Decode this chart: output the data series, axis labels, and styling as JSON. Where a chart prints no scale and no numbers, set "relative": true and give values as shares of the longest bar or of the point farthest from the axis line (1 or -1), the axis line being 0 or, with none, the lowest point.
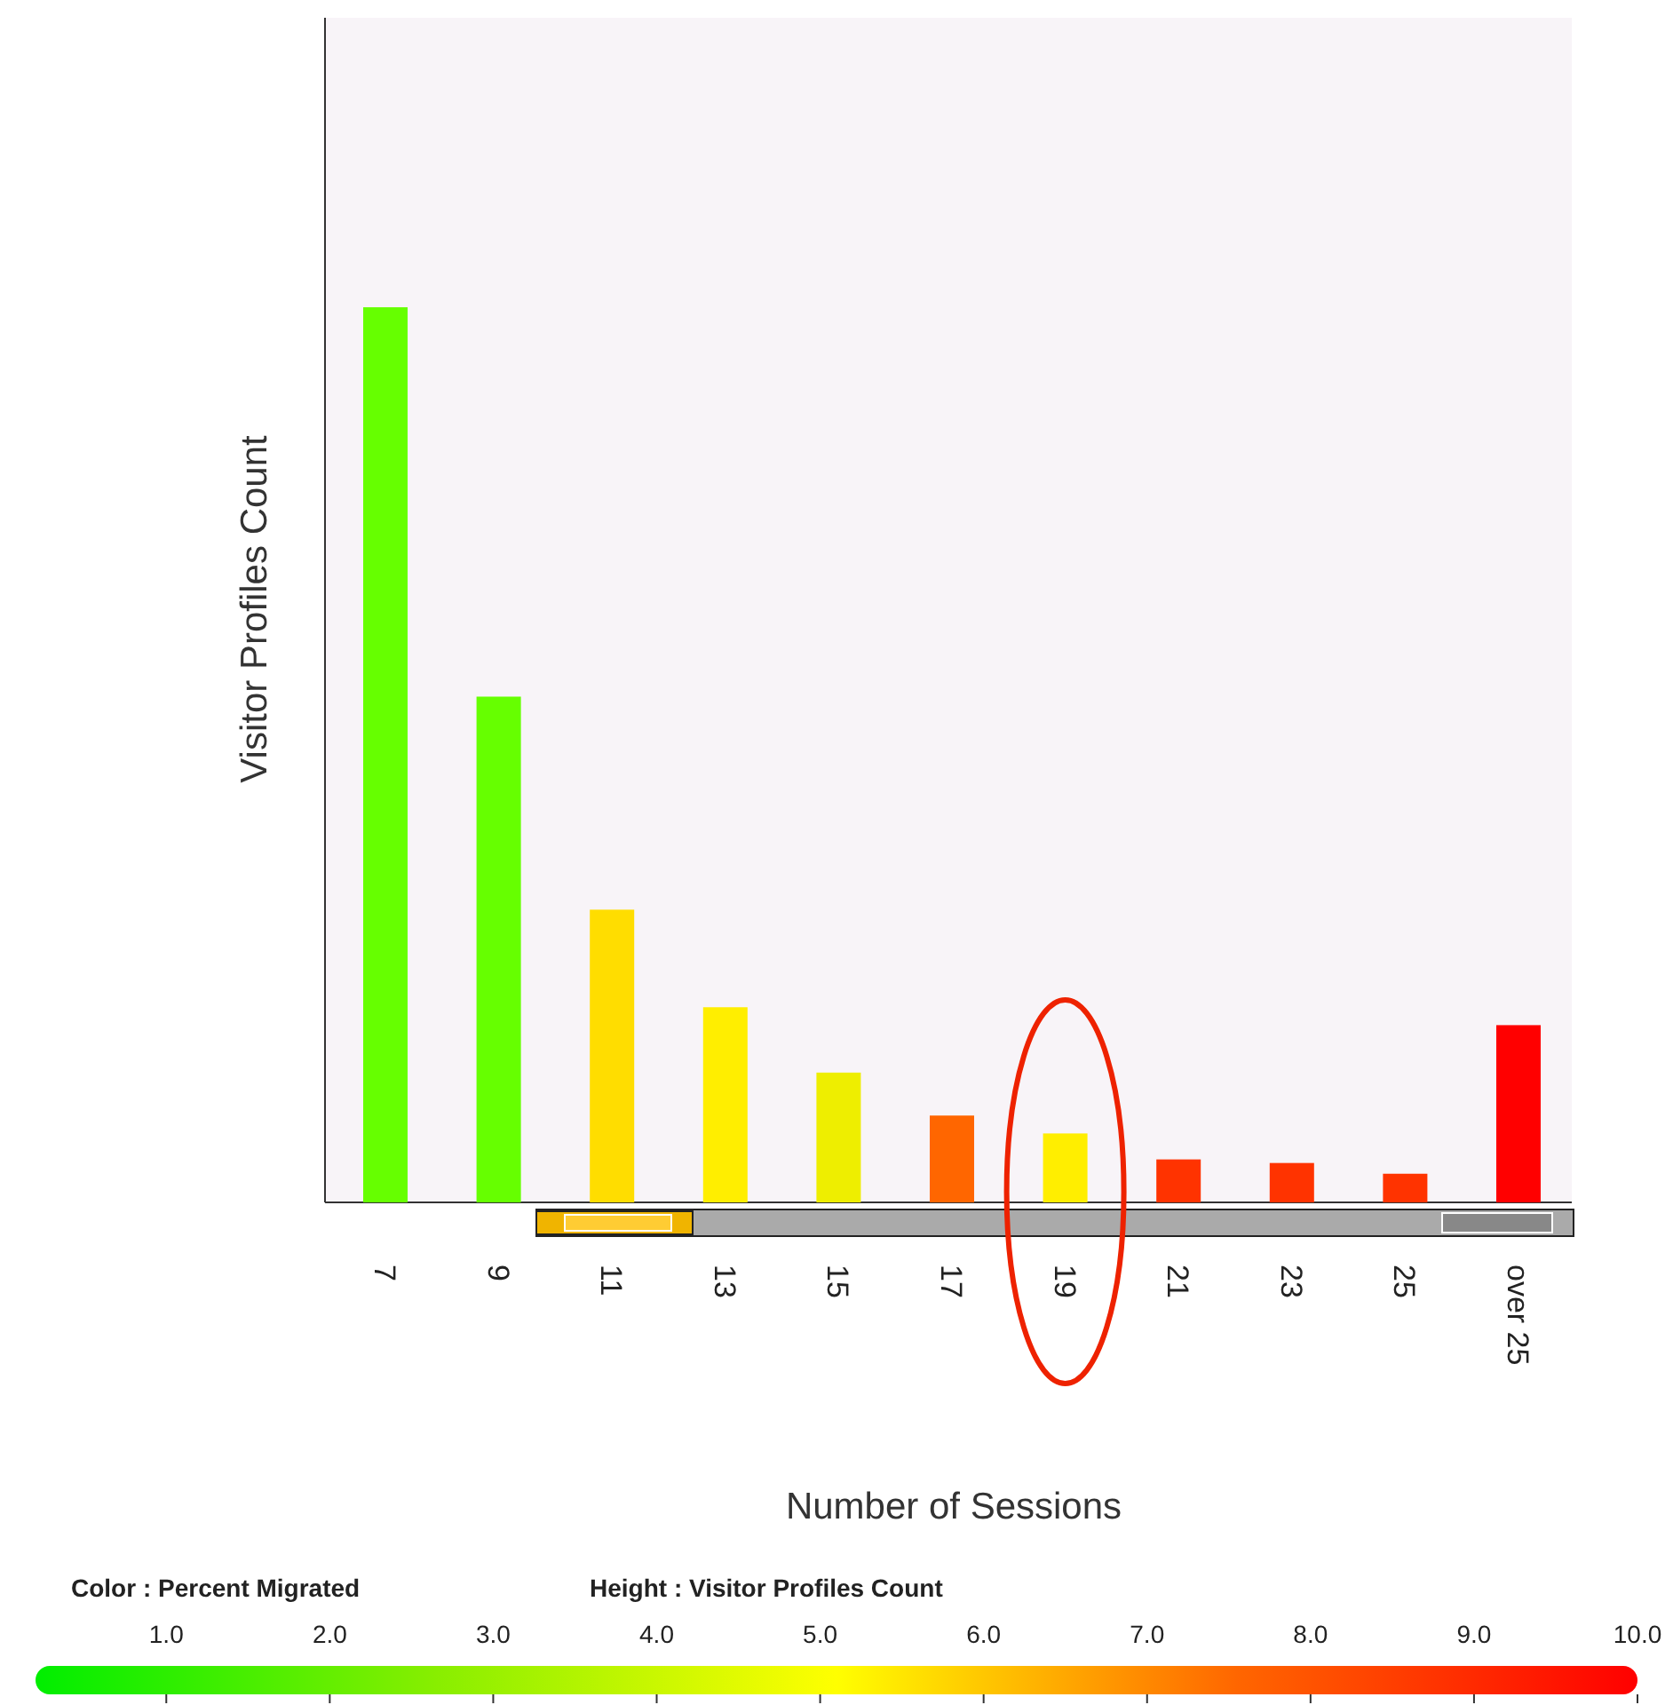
{
  "chart_data": {
    "type": "bar",
    "relative": true,
    "xlabel": "Number of Sessions",
    "ylabel": "Visitor Profiles Count",
    "categories": [
      "7",
      "9",
      "11",
      "13",
      "15",
      "17",
      "19",
      "21",
      "23",
      "25",
      "over 25"
    ],
    "values": [
      1,
      0.565,
      0.327,
      0.218,
      0.145,
      0.097,
      0.077,
      0.048,
      0.044,
      0.032,
      0.198
    ],
    "colors": [
      "#66ff00",
      "#66ff00",
      "#ffdd00",
      "#ffee00",
      "#eeee00",
      "#ff6600",
      "#ffee00",
      "#ff3300",
      "#ff3300",
      "#ff3300",
      "#ff0000"
    ],
    "clabel": "Color : Percent Migrated",
    "clim": [
      0.2,
      10
    ],
    "cticks": [
      {
        "value": 1,
        "label": "1.0"
      },
      {
        "value": 2,
        "label": "2.0"
      },
      {
        "value": 3,
        "label": "3.0"
      },
      {
        "value": 4,
        "label": "4.0"
      },
      {
        "value": 5,
        "label": "5.0"
      },
      {
        "value": 6,
        "label": "6.0"
      },
      {
        "value": 7,
        "label": "7.0"
      },
      {
        "value": 8,
        "label": "8.0"
      },
      {
        "value": 9,
        "label": "9.0"
      },
      {
        "value": 10,
        "label": "10.0"
      }
    ],
    "annotations": [
      "Height : Visitor Profiles Count"
    ]
  }
}
